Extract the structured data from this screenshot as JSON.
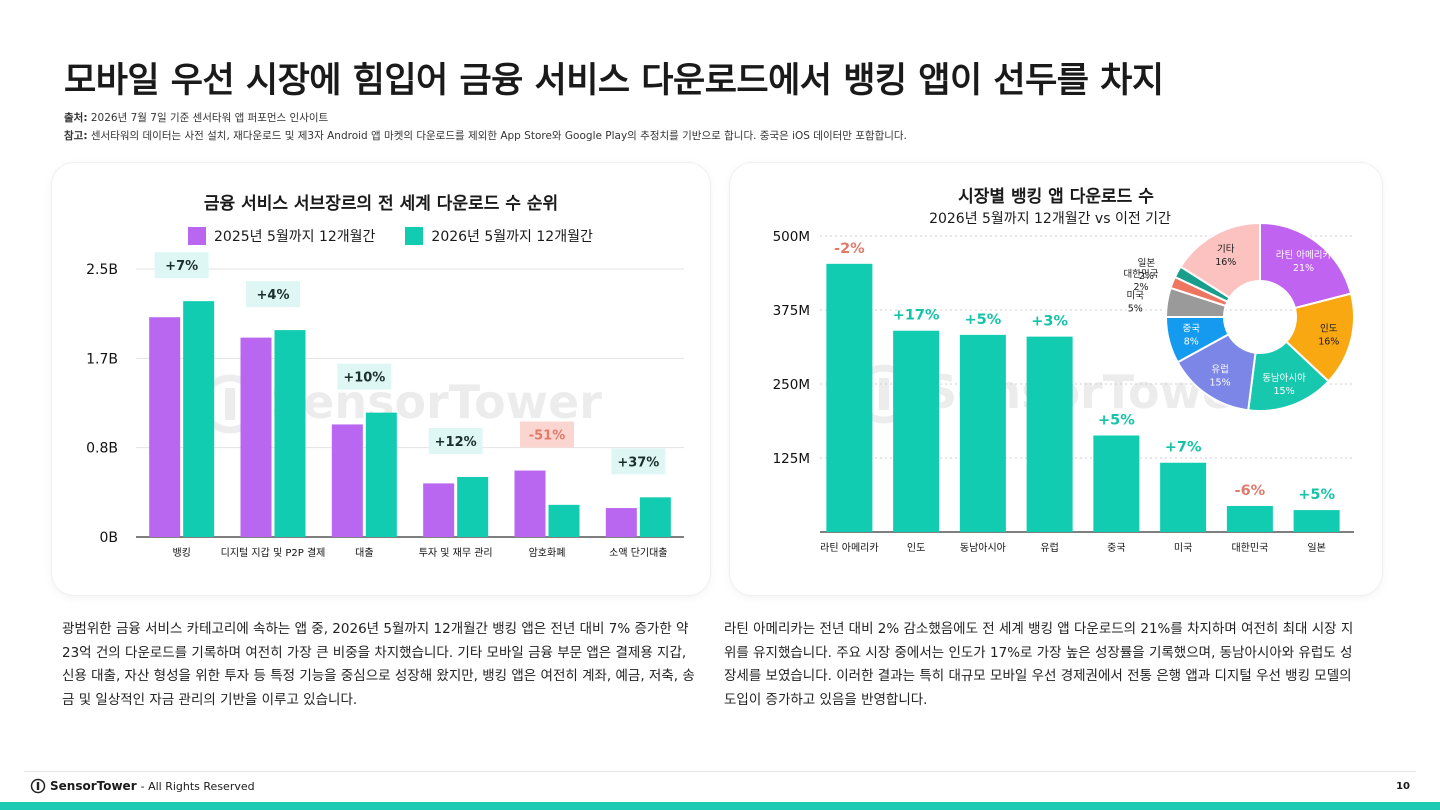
{
  "title": "모바일 우선 시장에 힘입어 금융 서비스 다운로드에서 뱅킹 앱이 선두를 차지",
  "source": {
    "label": "출처:",
    "text": " 2026년 7월 7일 기준 센서타워 앱 퍼포먼스 인사이트"
  },
  "note": {
    "label": "참고:",
    "text": " 센서타워의 데이터는 사전 설치, 재다운로드 및 제3자 Android 앱 마켓의 다운로드를 제외한 App Store와 Google Play의 추정치를 기반으로 합니다. 중국은 iOS 데이터만 포함합니다."
  },
  "colors": {
    "purple": "#b966f0",
    "teal": "#11ccb0",
    "pos_label": "#0f9f87",
    "neg_label": "#e07a6b",
    "pos_bg": "#dff7f4",
    "neg_bg": "#fbd6d0"
  },
  "chart_data": [
    {
      "type": "bar",
      "title": "금융 서비스 서브장르의 전 세계 다운로드 수 순위",
      "categories": [
        "뱅킹",
        "디지털 지갑 및 P2P 결제",
        "대출",
        "투자 및 재무 관리",
        "암호화폐",
        "소액 단기대출"
      ],
      "series": [
        {
          "name": "2025년 5월까지 12개월간",
          "color": "#b966f0",
          "values": [
            2.05,
            1.86,
            1.05,
            0.5,
            0.62,
            0.27
          ]
        },
        {
          "name": "2026년 5월까지 12개월간",
          "color": "#11ccb0",
          "values": [
            2.2,
            1.93,
            1.16,
            0.56,
            0.3,
            0.37
          ]
        }
      ],
      "changes": [
        "+7%",
        "+4%",
        "+10%",
        "+12%",
        "-51%",
        "+37%"
      ],
      "yticks": [
        "0B",
        "0.8B",
        "1.7B",
        "2.5B"
      ],
      "ylim": [
        0,
        2.5
      ]
    },
    {
      "type": "bar",
      "title": "시장별 뱅킹 앱 다운로드 수",
      "subtitle": "2026년 5월까지 12개월간 vs 이전 기간",
      "categories": [
        "라틴 아메리카",
        "인도",
        "동남아시아",
        "유럽",
        "중국",
        "미국",
        "대한민국",
        "일본"
      ],
      "values": [
        453,
        340,
        333,
        330,
        163,
        117,
        44,
        37
      ],
      "changes": [
        "-2%",
        "+17%",
        "+5%",
        "+3%",
        "+5%",
        "+7%",
        "-6%",
        "+5%"
      ],
      "yticks": [
        "125M",
        "250M",
        "375M",
        "500M"
      ],
      "ylim": [
        0,
        500
      ],
      "grid": true
    },
    {
      "type": "pie",
      "slices": [
        {
          "name": "라틴 아메리카",
          "value": 21,
          "label": "21%",
          "color": "#c063f0"
        },
        {
          "name": "인도",
          "value": 16,
          "label": "16%",
          "color": "#f9a812"
        },
        {
          "name": "동남아시아",
          "value": 15,
          "label": "15%",
          "color": "#17c8ae"
        },
        {
          "name": "유럽",
          "value": 15,
          "label": "15%",
          "color": "#7b86e6"
        },
        {
          "name": "중국",
          "value": 8,
          "label": "8%",
          "color": "#149bf0"
        },
        {
          "name": "미국",
          "value": 5,
          "label": "5%",
          "color": "#9a9a9a"
        },
        {
          "name": "대한민국",
          "value": 2,
          "label": "2%",
          "color": "#ee7660"
        },
        {
          "name": "일본",
          "value": 2,
          "label": "2%",
          "color": "#1a9e8c"
        },
        {
          "name": "기타",
          "value": 16,
          "label": "16%",
          "color": "#fbc2c0"
        }
      ]
    }
  ],
  "paragraph_left": "광범위한 금융 서비스 카테고리에 속하는 앱 중, 2026년 5월까지 12개월간 뱅킹 앱은 전년 대비 7% 증가한 약 23억 건의 다운로드를 기록하며 여전히 가장 큰 비중을 차지했습니다. 기타 모바일 금융 부문 앱은 결제용 지갑, 신용 대출, 자산 형성을 위한 투자 등 특정 기능을 중심으로 성장해 왔지만, 뱅킹 앱은 여전히 계좌, 예금, 저축, 송금 및 일상적인 자금 관리의 기반을 이루고 있습니다.",
  "paragraph_right": "라틴 아메리카는 전년 대비 2% 감소했음에도 전 세계 뱅킹 앱 다운로드의 21%를 차지하며 여전히 최대 시장 지위를 유지했습니다. 주요 시장 중에서는 인도가 17%로 가장 높은 성장률을 기록했으며, 동남아시아와 유럽도 성장세를 보였습니다. 이러한 결과는 특히 대규모 모바일 우선 경제권에서 전통 은행 앱과 디지털 우선 뱅킹 모델의 도입이 증가하고 있음을 반영합니다.",
  "watermark": "SensorTower",
  "footer": {
    "brand": "SensorTower",
    "rights": "- All Rights Reserved",
    "page": "10"
  }
}
